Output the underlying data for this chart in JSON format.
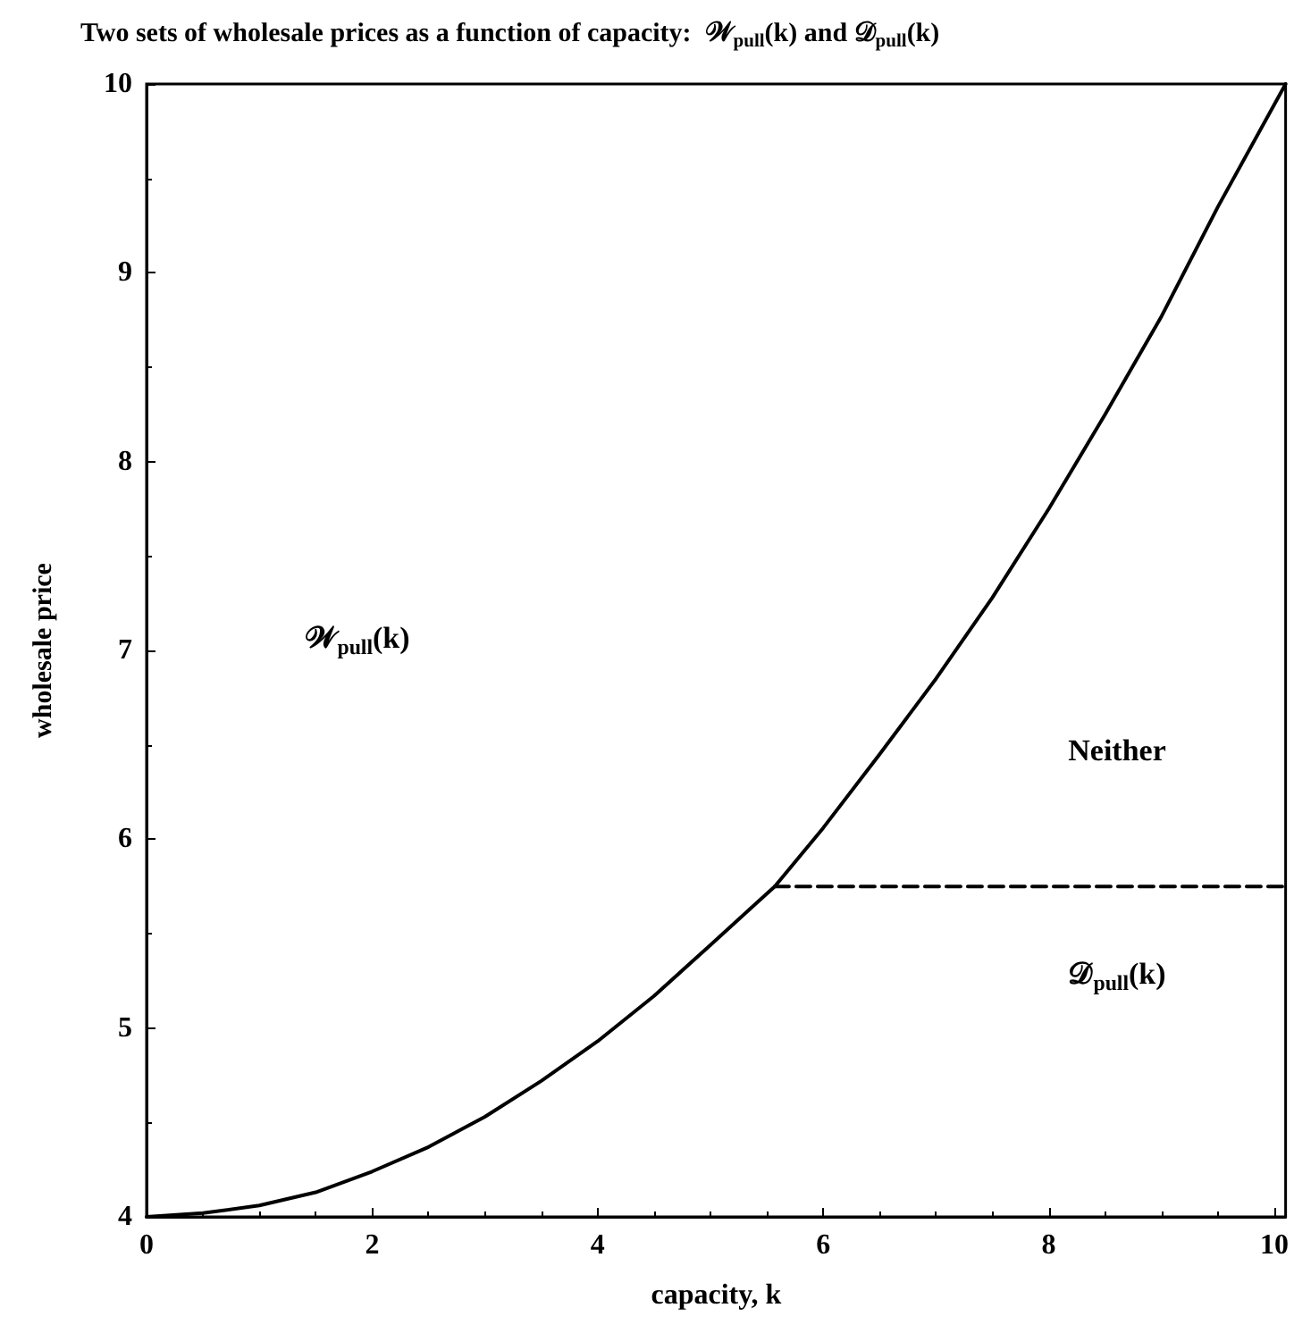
{
  "chart_data": {
    "type": "line",
    "title": "Two sets of wholesale prices as a function of capacity:  𝒲$_{pull}$(k) and 𝒟$_{pull}$(k)",
    "xlabel": "capacity, k",
    "ylabel": "wholesale price",
    "series": [
      {
        "color": "#000000",
        "line_style": "solid",
        "x": [
          0,
          0.5,
          1,
          1.5,
          2,
          2.5,
          3,
          3.5,
          4,
          4.5,
          5,
          5.57,
          6,
          6.5,
          7,
          7.5,
          8,
          8.5,
          9,
          9.5,
          10.1
        ],
        "values": [
          4,
          4.02,
          4.06,
          4.13,
          4.24,
          4.37,
          4.53,
          4.72,
          4.93,
          5.17,
          5.44,
          5.75,
          6.06,
          6.45,
          6.85,
          7.28,
          7.75,
          8.25,
          8.77,
          9.35,
          10
        ]
      },
      {
        "color": "#000000",
        "line_style": "dashed",
        "x": [
          5.57,
          10.1
        ],
        "values": [
          5.75,
          5.75
        ]
      }
    ],
    "annotations": [
      "𝒲$_{pull}$(k)",
      "Neither",
      "𝒟$_{pull}$(k)"
    ],
    "xlim": [
      0,
      10.1
    ],
    "ylim": [
      4,
      10
    ],
    "xticks": [
      0,
      2,
      4,
      6,
      8,
      10
    ],
    "yticks": [
      4,
      5,
      6,
      7,
      8,
      9,
      10
    ],
    "grid": false,
    "marker": "none"
  }
}
